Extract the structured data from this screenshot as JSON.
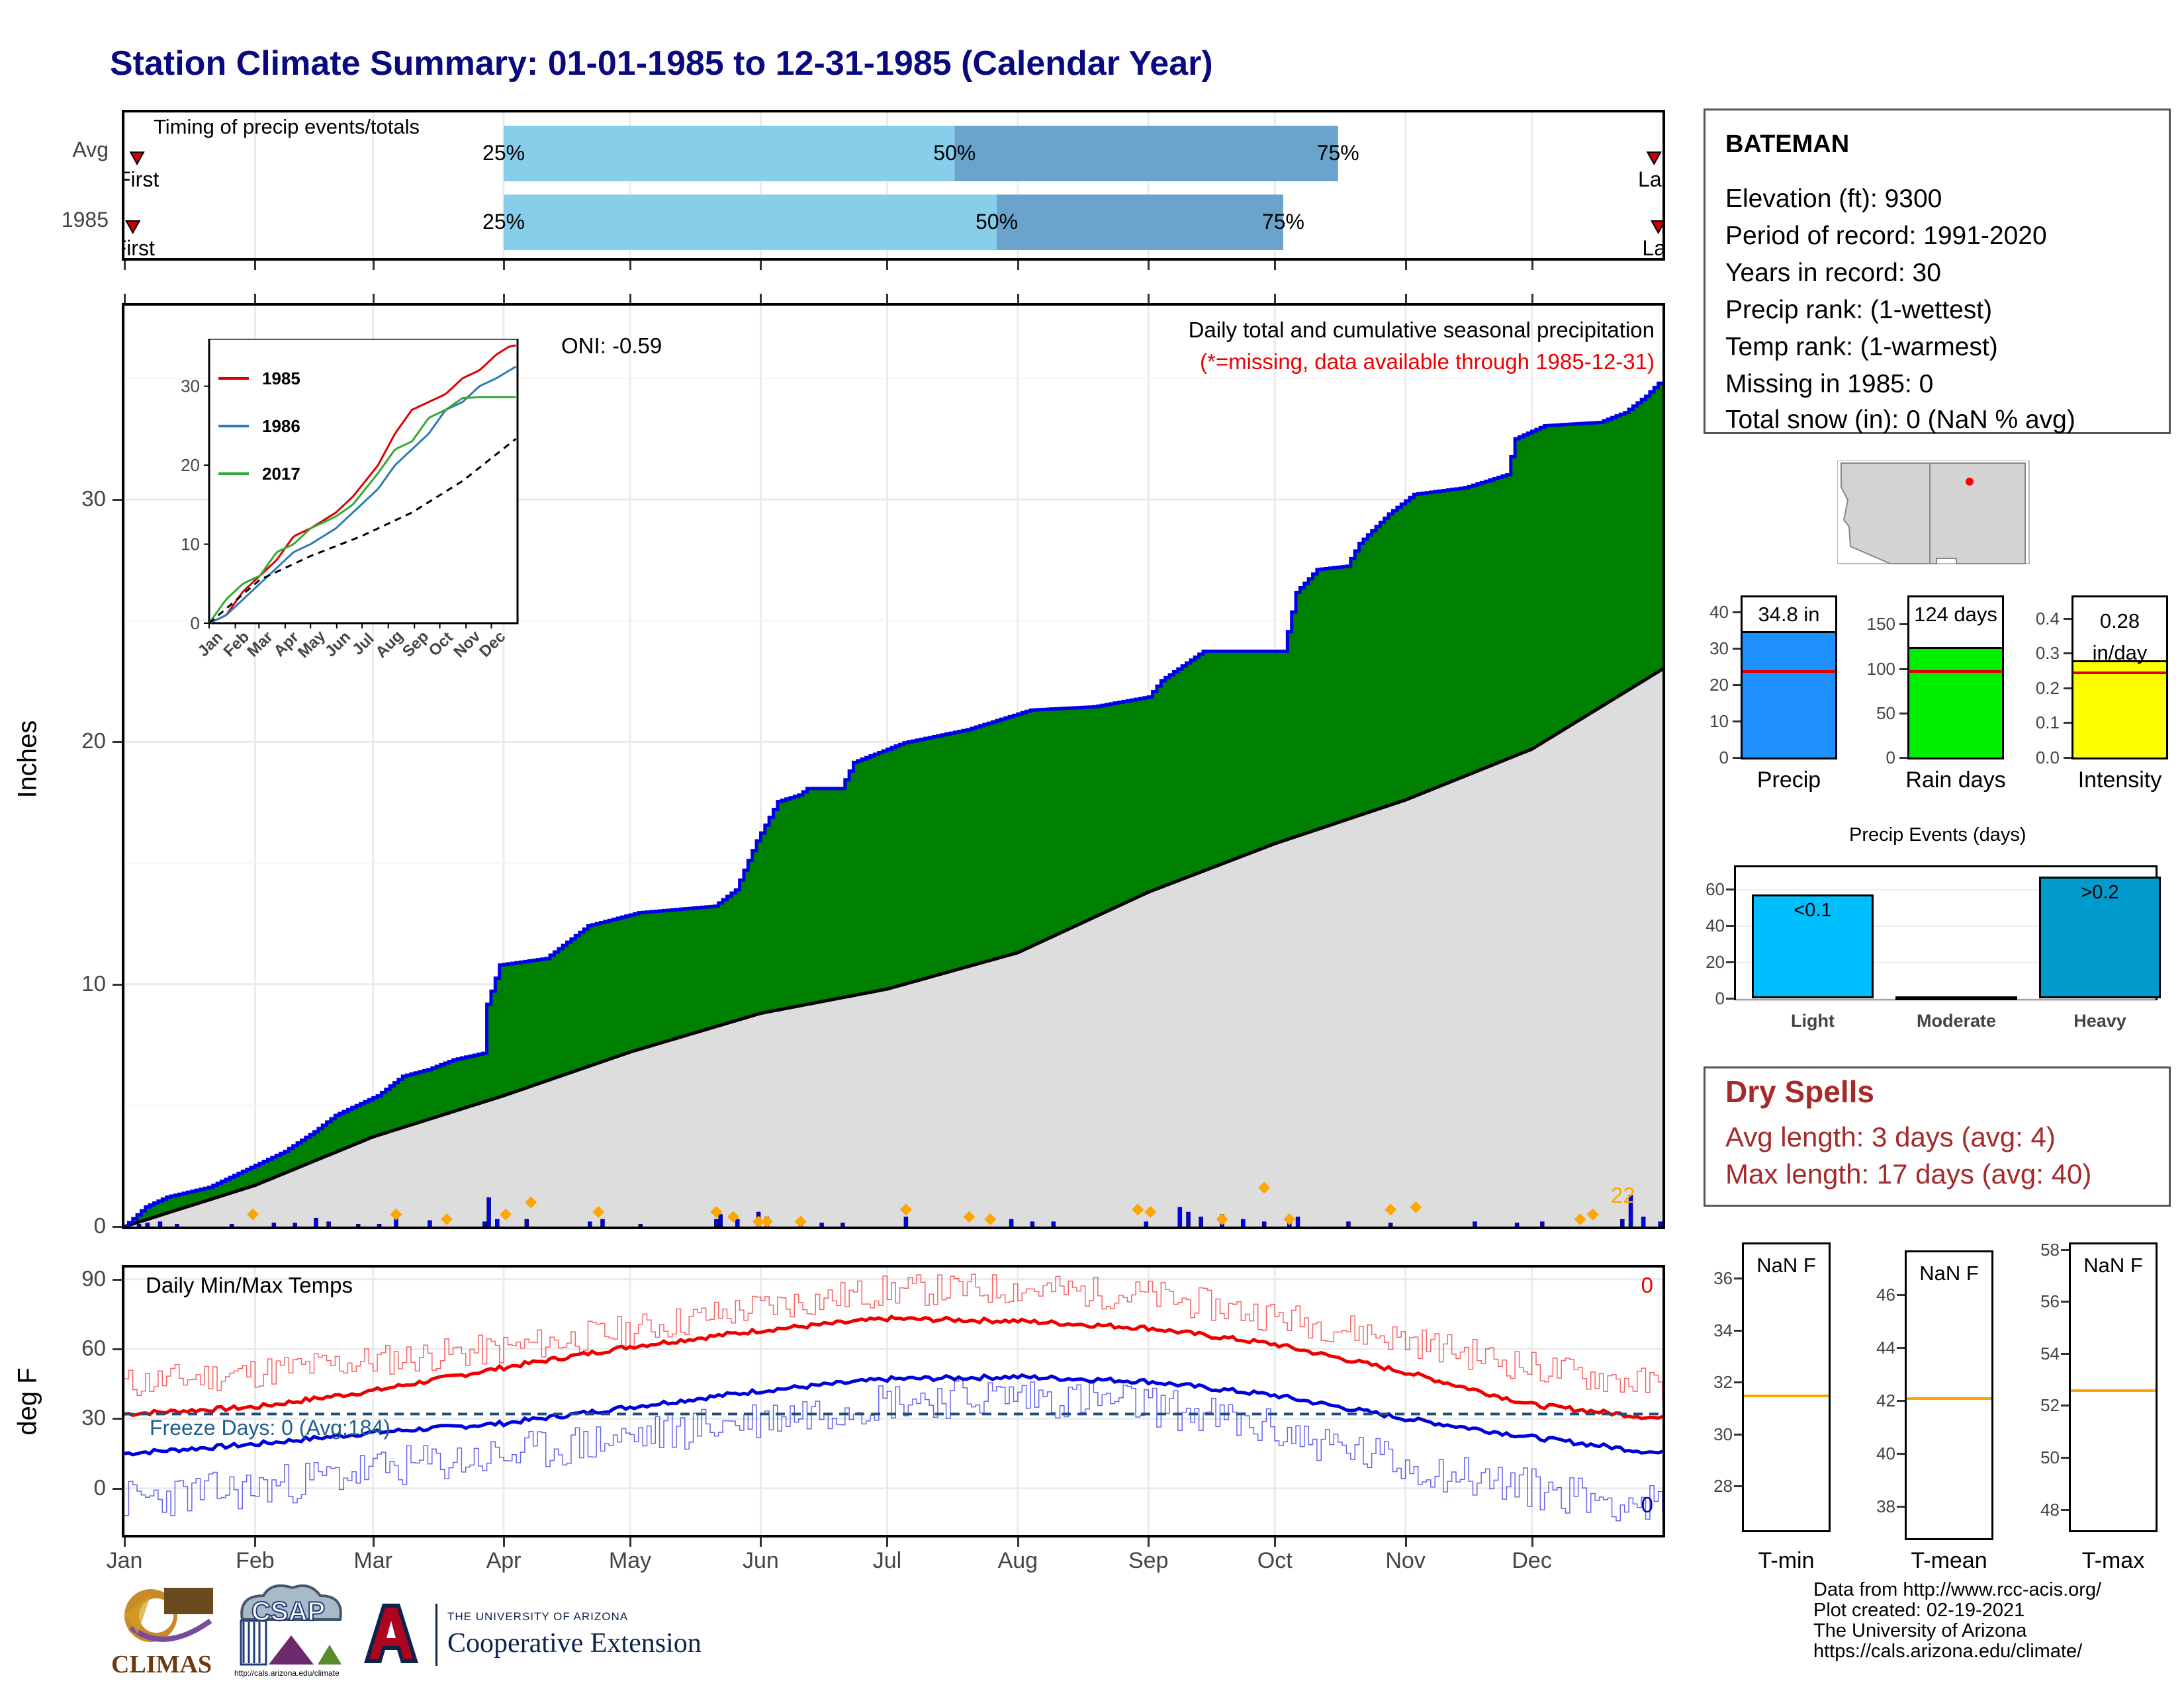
{
  "title": "Station Climate Summary: 01-01-1985 to 12-31-1985 (Calendar Year)",
  "timing_panel": {
    "title": "Timing of precip events/totals",
    "rows": [
      {
        "label": "Avg",
        "first_label": "First",
        "last_label": "Last",
        "q25_label": "25%",
        "q50_label": "50%",
        "q75_label": "75%",
        "first_doy": 3,
        "q25_doy": 90,
        "q50_doy": 197,
        "q75_doy": 288,
        "last_doy": 363
      },
      {
        "label": "1985",
        "first_label": "First",
        "last_label": "Last",
        "q25_label": "25%",
        "q50_label": "50%",
        "q75_label": "75%",
        "first_doy": 2,
        "q25_doy": 90,
        "q50_doy": 207,
        "q75_doy": 275,
        "last_doy": 364
      }
    ],
    "colors": {
      "light": "#87ceeb",
      "dark": "#6aa4cc",
      "marker": "#cc0000"
    }
  },
  "precip_panel": {
    "ylabel": "Inches",
    "subtitle": "Daily total and cumulative seasonal precipitation",
    "missing_note": "(*=missing, data available through 1985-12-31)",
    "oni_label": "ONI: -0.59",
    "count_label": "22",
    "colors": {
      "cumulative": "#008000",
      "cumulative_line": "#0000ee",
      "normal": "#dddddd",
      "daily": "#0000ee",
      "event": "#ffa500",
      "count": "#ffa500",
      "note": "#ee0000"
    },
    "inset": {
      "series": [
        {
          "name": "1985",
          "color": "#dd0000"
        },
        {
          "name": "1986",
          "color": "#2e7bb8"
        },
        {
          "name": "2017",
          "color": "#33aa33"
        }
      ]
    }
  },
  "temp_panel": {
    "ylabel": "deg F",
    "title": "Daily Min/Max Temps",
    "freeze_label": "Freeze Days: 0 (Avg:184)",
    "max_count_label": "0",
    "min_count_label": "0",
    "colors": {
      "max": "#ee0000",
      "min": "#0000dd",
      "freeze": "#1f4e79",
      "freeze_text": "#1f5e8c"
    }
  },
  "months": [
    "Jan",
    "Feb",
    "Mar",
    "Apr",
    "May",
    "Jun",
    "Jul",
    "Aug",
    "Sep",
    "Oct",
    "Nov",
    "Dec"
  ],
  "station": {
    "name": "BATEMAN",
    "lines": [
      "Elevation (ft): 9300",
      "Period of record: 1991-2020",
      "Years in record: 30",
      "Precip rank:  (1-wettest)",
      "Temp rank:  (1-warmest)",
      "Missing in 1985: 0",
      "Total snow (in): 0 (NaN % avg)"
    ]
  },
  "summary_bars": [
    {
      "label": "Precip",
      "value_label": "34.8 in",
      "value": 34.8,
      "avg": 23.2,
      "ylim": [
        0,
        44
      ],
      "ticks": [
        "0",
        "10",
        "20",
        "30",
        "40"
      ],
      "tick_values": [
        0,
        10,
        20,
        30,
        40
      ],
      "color": "#1e90ff"
    },
    {
      "label": "Rain days",
      "value_label": "124 days",
      "value": 124,
      "avg": 95,
      "ylim": [
        0,
        180
      ],
      "ticks": [
        "0",
        "50",
        "100",
        "150"
      ],
      "tick_values": [
        0,
        50,
        100,
        150
      ],
      "color": "#00ee00"
    },
    {
      "label": "Intensity",
      "value_label": "0.28\nin/day",
      "value_label_a": "0.28",
      "value_label_b": "in/day",
      "value": 0.28,
      "avg": 0.24,
      "ylim": [
        0,
        0.46
      ],
      "ticks": [
        "0.0",
        "0.1",
        "0.2",
        "0.3",
        "0.4"
      ],
      "tick_values": [
        0,
        0.1,
        0.2,
        0.3,
        0.4
      ],
      "color": "#ffff00"
    }
  ],
  "events_chart": {
    "title": "Precip Events (days)",
    "categories": [
      "Light",
      "Moderate",
      "Heavy"
    ],
    "values": [
      57,
      0,
      67
    ],
    "labels": [
      "<0.1",
      "",
      ">0.2"
    ],
    "ticks": [
      "0",
      "20",
      "40",
      "60"
    ],
    "tick_values": [
      0,
      20,
      40,
      60
    ],
    "ylim": [
      0,
      72
    ],
    "colors": [
      "#00bfff",
      "#8a8a8a",
      "#009acd"
    ]
  },
  "dry_spells": {
    "title": "Dry Spells",
    "avg_line": "Avg length: 3 days (avg: 4)",
    "max_line": "Max length: 17 days (avg: 40)"
  },
  "temp_bars": [
    {
      "label": "T-min",
      "value_label": "NaN F",
      "avg": 31.6,
      "ylim": [
        26.3,
        37.3
      ],
      "ticks": [
        "28",
        "30",
        "32",
        "34",
        "36"
      ],
      "tick_values": [
        28,
        30,
        32,
        34,
        36
      ]
    },
    {
      "label": "T-mean",
      "value_label": "NaN F",
      "avg": 42.2,
      "ylim": [
        36.8,
        47.6
      ],
      "ticks": [
        "38",
        "40",
        "42",
        "44",
        "46"
      ],
      "tick_values": [
        38,
        40,
        42,
        44,
        46
      ]
    },
    {
      "label": "T-max",
      "value_label": "NaN F",
      "avg": 52.7,
      "ylim": [
        47.2,
        58.2
      ],
      "ticks": [
        "48",
        "50",
        "52",
        "54",
        "56",
        "58"
      ],
      "tick_values": [
        48,
        50,
        52,
        54,
        56,
        58
      ]
    }
  ],
  "logos": {
    "climas": "CLIMAS",
    "csap": "CSAP",
    "csap_url": "http://cals.arizona.edu/climate",
    "ua_line1": "THE UNIVERSITY OF ARIZONA",
    "ua_line2": "Cooperative Extension"
  },
  "credits": [
    "Data from http://www.rcc-acis.org/",
    "Plot created: 02-19-2021",
    "The University of Arizona",
    "https://cals.arizona.edu/climate/"
  ]
}
